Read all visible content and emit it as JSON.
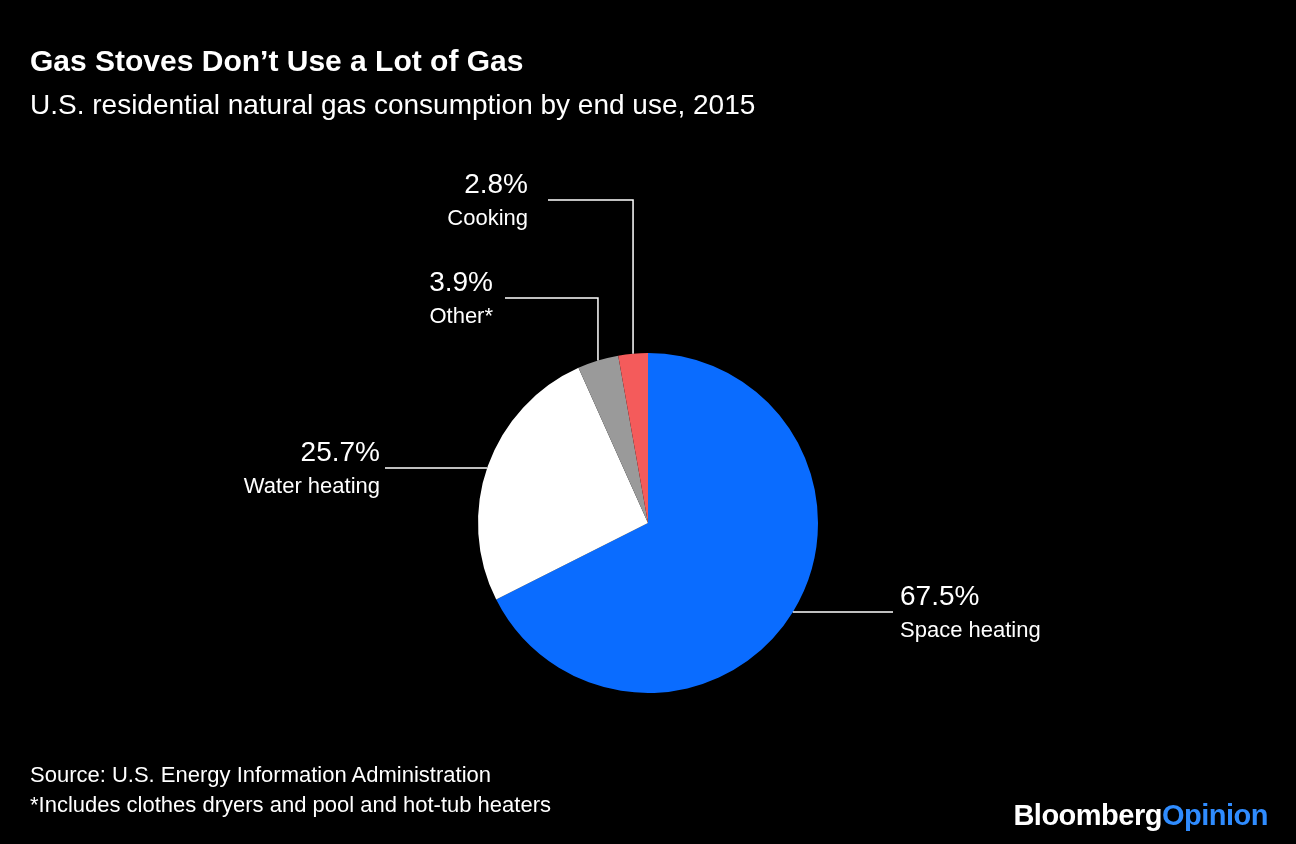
{
  "chart_data": {
    "type": "pie",
    "title": "Gas Stoves Don’t Use a Lot of Gas",
    "subtitle": "U.S. residential natural gas consumption by end use, 2015",
    "categories": [
      "Space heating",
      "Water heating",
      "Other*",
      "Cooking"
    ],
    "values": [
      67.5,
      25.7,
      3.9,
      2.8
    ],
    "value_labels": [
      "67.5%",
      "25.7%",
      "3.9%",
      "2.8%"
    ],
    "colors": [
      "#0a6cff",
      "#ffffff",
      "#9a9a9a",
      "#f45b5b"
    ],
    "data_labels": true,
    "source": "Source: U.S. Energy Information Administration",
    "note": "*Includes clothes dryers and pool and hot-tub heaters",
    "logo": {
      "text": "Bloomberg",
      "accent": "Opinion"
    }
  }
}
